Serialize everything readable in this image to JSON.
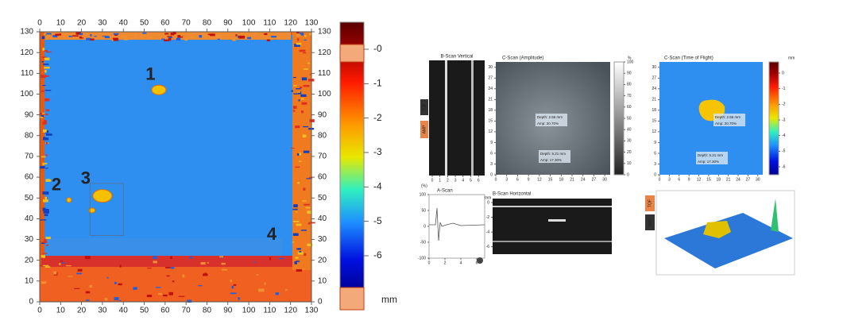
{
  "left_scan": {
    "xlim": [
      0,
      130
    ],
    "ylim": [
      0,
      130
    ],
    "xticks": [
      0,
      10,
      20,
      30,
      40,
      50,
      60,
      70,
      80,
      90,
      100,
      110,
      120,
      130
    ],
    "yticks": [
      0,
      10,
      20,
      30,
      40,
      50,
      60,
      70,
      80,
      90,
      100,
      110,
      120,
      130
    ],
    "markers": [
      "1",
      "2",
      "3",
      "4"
    ],
    "colorbar": {
      "lim": [
        0,
        -6
      ],
      "ticks": [
        {
          "value": 0,
          "label": "-0"
        },
        -1,
        -2,
        -3,
        -4,
        -5,
        -6
      ],
      "unit": "mm"
    }
  },
  "right_screen": {
    "buttons": [
      "TOF",
      "AMP"
    ],
    "b_scan_vertical": {
      "title": "B-Scan Vertical",
      "xlim": [
        0,
        6.8
      ],
      "xticks": [
        0,
        1,
        2,
        3,
        4,
        5,
        6
      ]
    },
    "c_scan_amplitude": {
      "title": "C-Scan (Amplitude)",
      "xlim": [
        0,
        31.5
      ],
      "ylim": [
        0,
        31.5
      ],
      "xticks": [
        0,
        3,
        6,
        9,
        12,
        15,
        18,
        21,
        24,
        27,
        30
      ],
      "yticks": [
        0,
        3,
        6,
        9,
        12,
        15,
        18,
        21,
        24,
        27,
        30
      ],
      "colorbar_lim": [
        0,
        100
      ],
      "colorbar_ticks": [
        0,
        10,
        20,
        30,
        40,
        50,
        60,
        70,
        80,
        90,
        100
      ],
      "unit": "%",
      "annotations": [
        "Depth: 2.56 mm",
        "Amp: 20.70%",
        "Depth: 5.21 mm",
        "Amp: 17.30%"
      ]
    },
    "c_scan_tof": {
      "title": "C-Scan (Time of Flight)",
      "xlim": [
        0,
        31.5
      ],
      "ylim": [
        0,
        31.5
      ],
      "xticks": [
        0,
        3,
        6,
        9,
        12,
        15,
        18,
        21,
        24,
        27,
        30
      ],
      "yticks": [
        0,
        3,
        6,
        9,
        12,
        15,
        18,
        21,
        24,
        27,
        30
      ],
      "colorbar_lim": [
        0,
        -6
      ],
      "colorbar_ticks": [
        0,
        -1,
        -2,
        -3,
        -4,
        -5,
        -6
      ],
      "unit": "mm",
      "annotations": [
        "Depth: 2.56 mm",
        "Amp: 20.70%",
        "Depth: 5.21 mm",
        "Amp: 17.30%"
      ]
    },
    "a_scan": {
      "title": "A-Scan",
      "unit": "(%)",
      "x_unit": "mm",
      "xlim": [
        0,
        7
      ],
      "ylim": [
        -100,
        100
      ],
      "xticks": [
        0,
        2,
        4,
        6
      ],
      "yticks": [
        100,
        50,
        0,
        -50,
        -100
      ]
    },
    "b_scan_horizontal": {
      "title": "B-Scan Horizontal",
      "ylim": [
        0,
        -7
      ],
      "yticks": [
        0,
        -2,
        -4,
        -6
      ],
      "unit": "mm"
    }
  }
}
